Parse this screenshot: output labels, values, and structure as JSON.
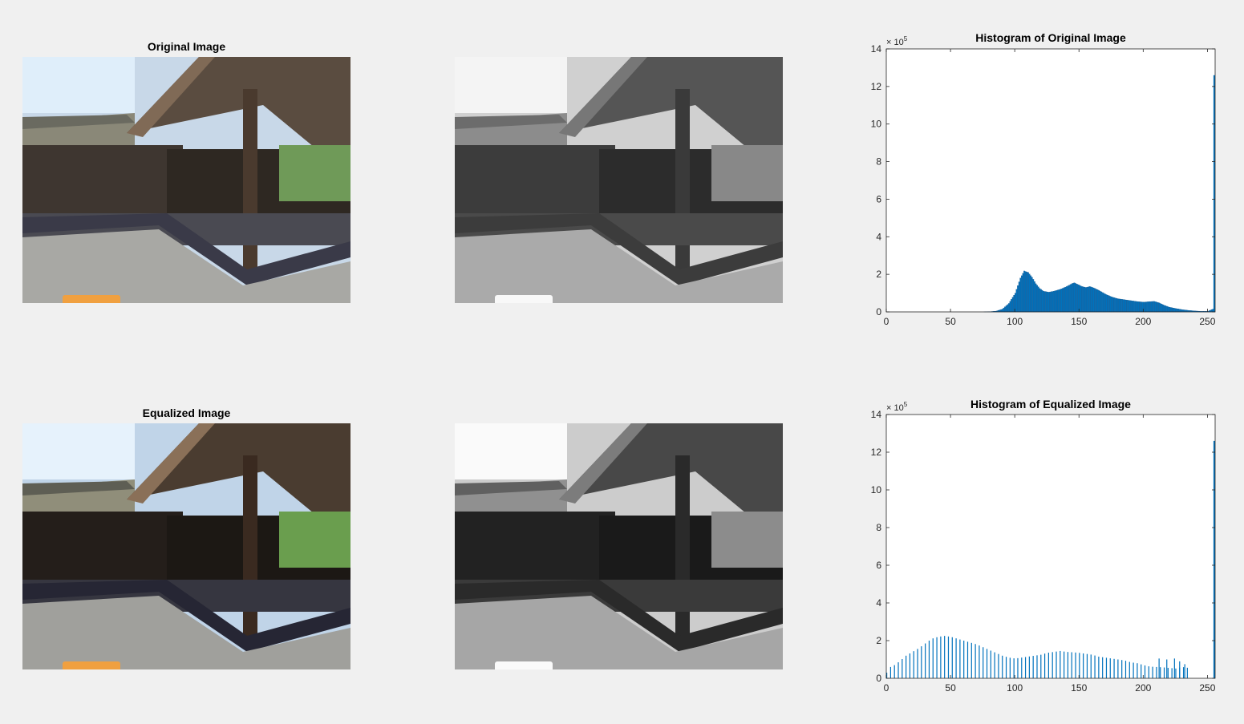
{
  "panels": {
    "original_title": "Original Image",
    "equalized_title": "Equalized Image"
  },
  "colors": {
    "background": "#f0f0f0",
    "bar": "#0072bd",
    "sign_orange": "#f0a040"
  },
  "chart_data": [
    {
      "type": "bar",
      "title": "Histogram of Original Image",
      "xlabel": "",
      "ylabel": "",
      "xlim": [
        0,
        256
      ],
      "ylim": [
        0,
        1400000
      ],
      "y_exponent_label": "× 10^5",
      "xticks": [
        "0",
        "50",
        "100",
        "150",
        "200",
        "250"
      ],
      "yticks": [
        "0",
        "2",
        "4",
        "6",
        "8",
        "10",
        "12",
        "14"
      ],
      "profile": [
        [
          0,
          0
        ],
        [
          75,
          0
        ],
        [
          80,
          1000
        ],
        [
          85,
          4000
        ],
        [
          90,
          15000
        ],
        [
          95,
          45000
        ],
        [
          100,
          100000
        ],
        [
          104,
          180000
        ],
        [
          107,
          218000
        ],
        [
          110,
          210000
        ],
        [
          113,
          185000
        ],
        [
          116,
          150000
        ],
        [
          119,
          125000
        ],
        [
          122,
          110000
        ],
        [
          126,
          105000
        ],
        [
          130,
          110000
        ],
        [
          135,
          120000
        ],
        [
          140,
          135000
        ],
        [
          144,
          150000
        ],
        [
          146,
          155000
        ],
        [
          149,
          145000
        ],
        [
          152,
          135000
        ],
        [
          155,
          130000
        ],
        [
          158,
          135000
        ],
        [
          161,
          128000
        ],
        [
          165,
          115000
        ],
        [
          170,
          95000
        ],
        [
          175,
          80000
        ],
        [
          180,
          70000
        ],
        [
          185,
          65000
        ],
        [
          190,
          60000
        ],
        [
          195,
          55000
        ],
        [
          200,
          52000
        ],
        [
          205,
          55000
        ],
        [
          208,
          56000
        ],
        [
          212,
          48000
        ],
        [
          216,
          35000
        ],
        [
          220,
          25000
        ],
        [
          225,
          18000
        ],
        [
          230,
          12000
        ],
        [
          235,
          8000
        ],
        [
          240,
          5000
        ],
        [
          245,
          3000
        ],
        [
          250,
          3000
        ],
        [
          252,
          10000
        ],
        [
          254,
          15000
        ]
      ],
      "spike": {
        "x": 255,
        "value": 1260000
      }
    },
    {
      "type": "bar",
      "title": "Histogram of Equalized Image",
      "xlabel": "",
      "ylabel": "",
      "xlim": [
        0,
        256
      ],
      "ylim": [
        0,
        1400000
      ],
      "y_exponent_label": "× 10^5",
      "xticks": [
        "0",
        "50",
        "100",
        "150",
        "200",
        "250"
      ],
      "yticks": [
        "0",
        "2",
        "4",
        "6",
        "8",
        "10",
        "12",
        "14"
      ],
      "profile": [
        [
          0,
          30000
        ],
        [
          3,
          60000
        ],
        [
          6,
          70000
        ],
        [
          10,
          90000
        ],
        [
          15,
          120000
        ],
        [
          20,
          140000
        ],
        [
          25,
          160000
        ],
        [
          30,
          185000
        ],
        [
          35,
          210000
        ],
        [
          40,
          220000
        ],
        [
          45,
          225000
        ],
        [
          50,
          220000
        ],
        [
          55,
          210000
        ],
        [
          60,
          200000
        ],
        [
          65,
          190000
        ],
        [
          70,
          180000
        ],
        [
          75,
          165000
        ],
        [
          80,
          150000
        ],
        [
          85,
          135000
        ],
        [
          90,
          120000
        ],
        [
          95,
          110000
        ],
        [
          100,
          105000
        ],
        [
          105,
          110000
        ],
        [
          110,
          115000
        ],
        [
          115,
          120000
        ],
        [
          120,
          125000
        ],
        [
          125,
          135000
        ],
        [
          130,
          140000
        ],
        [
          135,
          145000
        ],
        [
          140,
          140000
        ],
        [
          145,
          138000
        ],
        [
          150,
          135000
        ],
        [
          155,
          130000
        ],
        [
          160,
          125000
        ],
        [
          165,
          115000
        ],
        [
          170,
          110000
        ],
        [
          175,
          105000
        ],
        [
          180,
          100000
        ],
        [
          185,
          95000
        ],
        [
          190,
          85000
        ],
        [
          195,
          80000
        ],
        [
          200,
          70000
        ],
        [
          205,
          62000
        ],
        [
          210,
          60000
        ],
        [
          215,
          58000
        ],
        [
          220,
          55000
        ],
        [
          225,
          52000
        ],
        [
          230,
          60000
        ],
        [
          235,
          55000
        ]
      ],
      "step": 3,
      "last_bin": 236,
      "bumps": [
        [
          212,
          105000
        ],
        [
          218,
          100000
        ],
        [
          224,
          105000
        ],
        [
          228,
          90000
        ],
        [
          232,
          75000
        ]
      ],
      "spike": {
        "x": 255,
        "value": 1260000
      }
    }
  ]
}
